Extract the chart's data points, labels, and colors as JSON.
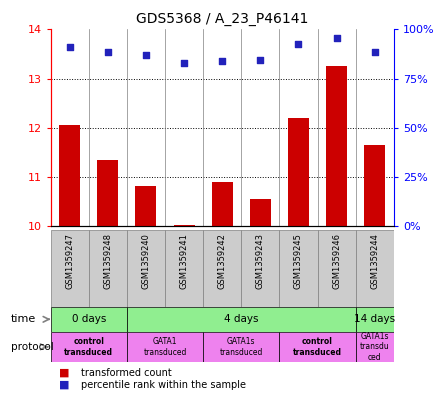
{
  "title": "GDS5368 / A_23_P46141",
  "samples": [
    "GSM1359247",
    "GSM1359248",
    "GSM1359240",
    "GSM1359241",
    "GSM1359242",
    "GSM1359243",
    "GSM1359245",
    "GSM1359246",
    "GSM1359244"
  ],
  "bar_values": [
    12.05,
    11.35,
    10.82,
    10.02,
    10.9,
    10.55,
    12.2,
    13.25,
    11.65
  ],
  "dot_values": [
    13.65,
    13.55,
    13.48,
    13.32,
    13.35,
    13.38,
    13.7,
    13.82,
    13.55
  ],
  "ylim_left": [
    10,
    14
  ],
  "ylim_right": [
    0,
    100
  ],
  "yticks_left": [
    10,
    11,
    12,
    13,
    14
  ],
  "ytick_labels_right": [
    "0%",
    "25%",
    "50%",
    "75%",
    "100%"
  ],
  "bar_color": "#cc0000",
  "dot_color": "#2222bb",
  "sample_bg": "#cccccc",
  "time_color": "#90ee90",
  "proto_color": "#ee82ee",
  "time_groups": [
    {
      "label": "0 days",
      "start": 0,
      "end": 2
    },
    {
      "label": "4 days",
      "start": 2,
      "end": 8
    },
    {
      "label": "14 days",
      "start": 8,
      "end": 9
    }
  ],
  "proto_groups": [
    {
      "label": "control\ntransduced",
      "start": 0,
      "end": 2,
      "bold": true
    },
    {
      "label": "GATA1\ntransduced",
      "start": 2,
      "end": 4,
      "bold": false
    },
    {
      "label": "GATA1s\ntransduced",
      "start": 4,
      "end": 6,
      "bold": false
    },
    {
      "label": "control\ntransduced",
      "start": 6,
      "end": 8,
      "bold": true
    },
    {
      "label": "GATA1s\ntransdu\nced",
      "start": 8,
      "end": 9,
      "bold": false
    }
  ]
}
